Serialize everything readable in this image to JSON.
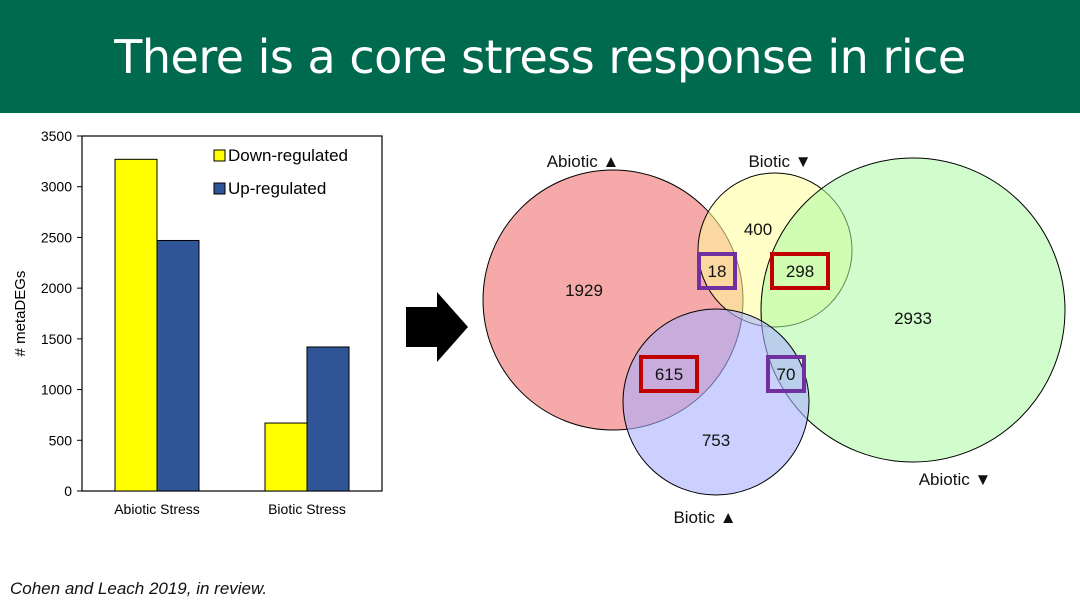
{
  "slide": {
    "title": "There is a core stress response in rice",
    "citation": "Cohen and Leach 2019, in review."
  },
  "colors": {
    "header_bg": "#006a4e",
    "down": "#ffff00",
    "up": "#2f5597",
    "abiotic_up": "#f4a0a0",
    "biotic_down": "#ffff99",
    "abiotic_down": "#a9fba0",
    "biotic_up": "#aab0ff",
    "highlight_red": "#c00000",
    "highlight_purple": "#7030a0"
  },
  "chart_data": [
    {
      "type": "bar",
      "categories": [
        "Abiotic Stress",
        "Biotic Stress"
      ],
      "series": [
        {
          "name": "Down-regulated",
          "values": [
            3270,
            670
          ]
        },
        {
          "name": "Up-regulated",
          "values": [
            2470,
            1420
          ]
        }
      ],
      "ylabel": "# metaDEGs",
      "ylim": [
        0,
        3500
      ],
      "yticks": [
        0,
        500,
        1000,
        1500,
        2000,
        2500,
        3000,
        3500
      ],
      "legend": "top-right",
      "grid": false
    },
    {
      "type": "venn",
      "sets": [
        "Abiotic ▲",
        "Biotic ▼",
        "Abiotic ▼",
        "Biotic ▲"
      ],
      "regions": [
        {
          "label": "1929",
          "sets": [
            "Abiotic ▲"
          ]
        },
        {
          "label": "400",
          "sets": [
            "Biotic ▼"
          ]
        },
        {
          "label": "2933",
          "sets": [
            "Abiotic ▼"
          ]
        },
        {
          "label": "753",
          "sets": [
            "Biotic ▲"
          ]
        },
        {
          "label": "18",
          "sets": [
            "Abiotic ▲",
            "Biotic ▼"
          ],
          "highlight": "purple"
        },
        {
          "label": "298",
          "sets": [
            "Biotic ▼",
            "Abiotic ▼"
          ],
          "highlight": "red"
        },
        {
          "label": "615",
          "sets": [
            "Abiotic ▲",
            "Biotic ▲"
          ],
          "highlight": "red"
        },
        {
          "label": "70",
          "sets": [
            "Biotic ▲",
            "Abiotic ▼"
          ],
          "highlight": "purple"
        }
      ]
    }
  ]
}
